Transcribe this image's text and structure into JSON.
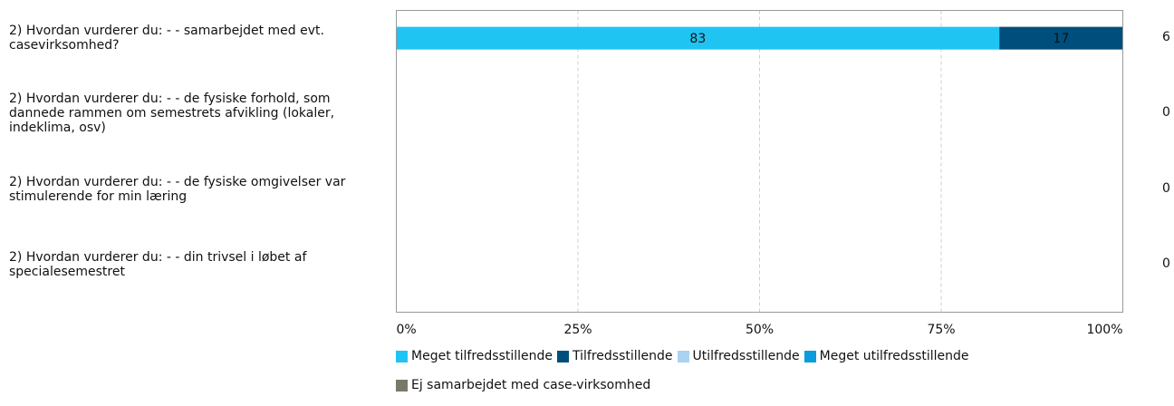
{
  "chart_data": {
    "type": "bar",
    "orientation": "horizontal",
    "stacked": true,
    "categories": [
      "2) Hvordan vurderer du: - - samarbejdet med evt. casevirksomhed?",
      "2) Hvordan vurderer du: - - de fysiske forhold, som dannede rammen om semestrets afvikling (lokaler, indeklima, osv)",
      "2) Hvordan vurderer du: - - de fysiske omgivelser var stimulerende for min læring",
      "2) Hvordan vurderer du: - - din trivsel i løbet af specialesemestret"
    ],
    "n": [
      "6",
      "0",
      "0",
      "0"
    ],
    "series": [
      {
        "name": "Meget tilfredsstillende",
        "color": "#1FC4F3",
        "values": [
          83,
          0,
          0,
          0
        ]
      },
      {
        "name": "Tilfredsstillende",
        "color": "#004E7C",
        "values": [
          17,
          0,
          0,
          0
        ]
      },
      {
        "name": "Utilfredsstillende",
        "color": "#A9D3F1",
        "values": [
          0,
          0,
          0,
          0
        ]
      },
      {
        "name": "Meget utilfredsstillende",
        "color": "#0A9CDC",
        "values": [
          0,
          0,
          0,
          0
        ]
      },
      {
        "name": "Ej samarbejdet med case-virksomhed",
        "color": "#7A7868",
        "values": [
          0,
          0,
          0,
          0
        ]
      }
    ],
    "data_labels": [
      [
        "83",
        "17"
      ],
      [],
      [],
      []
    ],
    "xticks": [
      "0%",
      "25%",
      "50%",
      "75%",
      "100%"
    ],
    "xlim": [
      0,
      100
    ],
    "grid": "vertical dashed",
    "legend_position": "bottom"
  }
}
